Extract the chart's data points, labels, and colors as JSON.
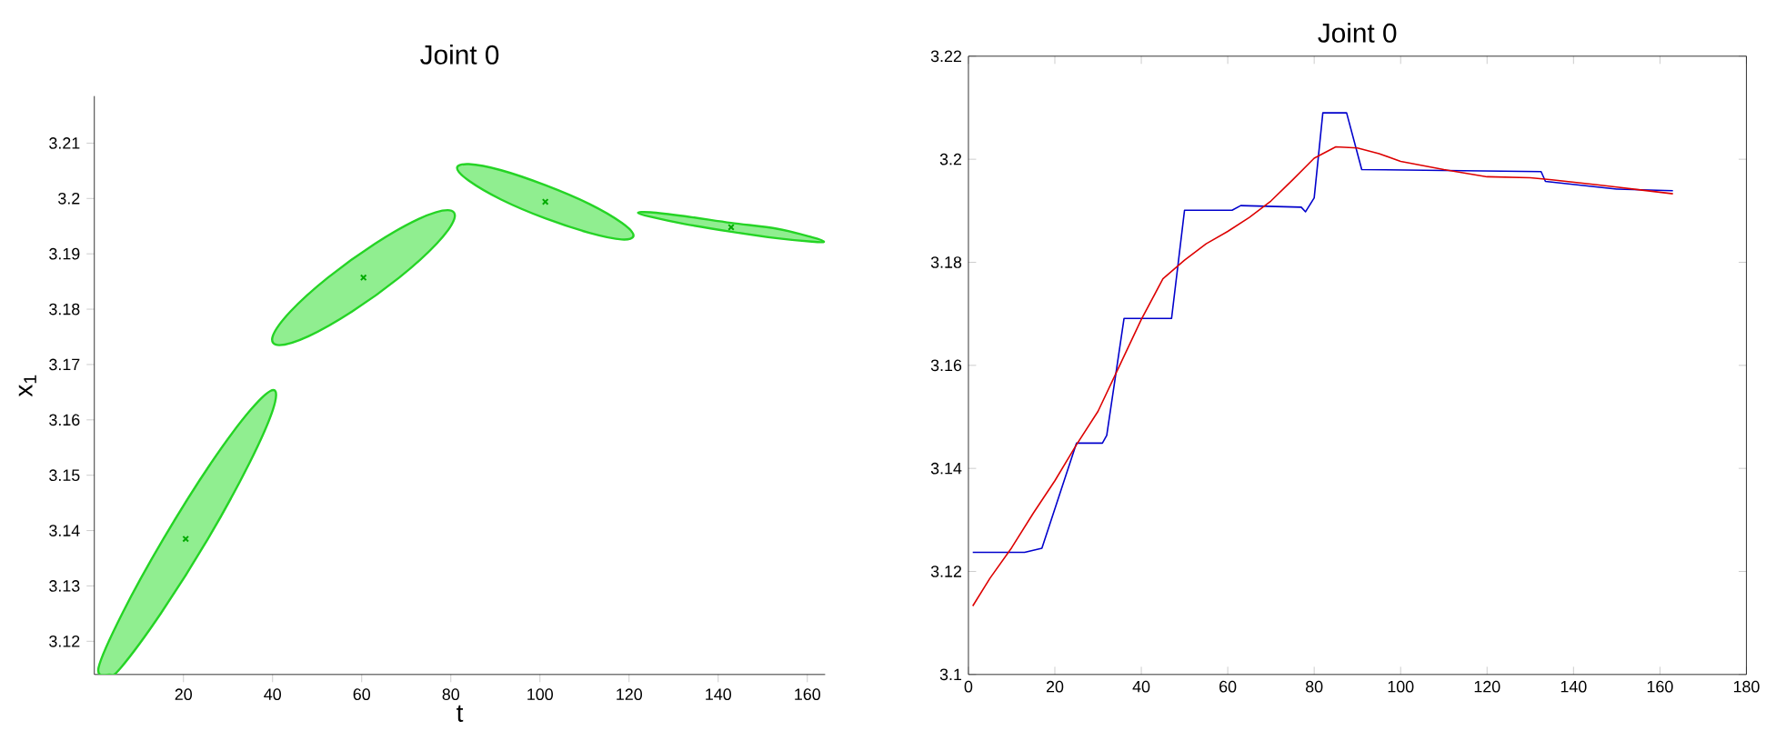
{
  "chart_data": [
    {
      "type": "scatter",
      "title": "Joint 0",
      "xlabel": "t",
      "ylabel": "x$_{1}$",
      "xlim": [
        0,
        164
      ],
      "ylim": [
        3.114,
        3.2185
      ],
      "xticks": [
        20,
        40,
        60,
        80,
        100,
        120,
        140,
        160
      ],
      "yticks": [
        3.12,
        3.13,
        3.14,
        3.15,
        3.16,
        3.17,
        3.18,
        3.19,
        3.2,
        3.21
      ],
      "grid": false,
      "legend": false,
      "series": [
        {
          "type": "area",
          "color": "#90ee90",
          "x": [
            40.2,
            40.06,
            34.68,
            25.5,
            14.98,
            5.94,
            3.4,
            0.94,
            6.32,
            15.5,
            26.02,
            35.06
          ],
          "values": [
            3.1654,
            3.1618,
            3.152,
            3.1385,
            3.1251,
            3.1152,
            3.114,
            3.1152,
            3.1251,
            3.1385,
            3.152,
            3.1618
          ]
        },
        {
          "type": "area",
          "color": "#90ee90",
          "x": [
            79.3,
            80.77,
            76.78,
            68.4,
            57.88,
            48.03,
            41.5,
            40.03,
            44.02,
            52.4,
            62.92,
            72.77
          ],
          "values": [
            3.1979,
            3.1963,
            3.1918,
            3.1857,
            3.1796,
            3.1751,
            3.1735,
            3.1751,
            3.1796,
            3.1857,
            3.1918,
            3.1963
          ]
        },
        {
          "type": "area",
          "color": "#90ee90",
          "x": [
            121.0,
            118.35,
            111.1,
            101.2,
            91.3,
            84.05,
            81.4,
            84.05,
            91.3,
            101.2,
            111.1,
            118.35
          ],
          "values": [
            3.1933,
            3.1956,
            3.199,
            3.2024,
            3.2051,
            3.2062,
            3.2055,
            3.2032,
            3.1998,
            3.1964,
            3.1938,
            3.1926
          ]
        },
        {
          "type": "area",
          "color": "#90ee90",
          "x": [
            122.0,
            124.8,
            132.45,
            142.9,
            153.35,
            161.0,
            163.8,
            161.0,
            153.35,
            142.9,
            132.45,
            124.8
          ],
          "values": [
            3.1974,
            3.1975,
            3.1968,
            3.1956,
            3.1945,
            3.193,
            3.1922,
            3.1922,
            3.1928,
            3.194,
            3.1954,
            3.1967
          ]
        },
        {
          "type": "scatter",
          "color": "#00aa00",
          "marker": "cross",
          "x": [
            20.5,
            60.4,
            101.2,
            142.9
          ],
          "values": [
            3.1385,
            3.1857,
            3.1994,
            3.1948
          ]
        }
      ]
    },
    {
      "type": "line",
      "title": "Joint 0",
      "xlim": [
        0,
        180
      ],
      "ylim": [
        3.1,
        3.22
      ],
      "xticks": [
        0,
        20,
        40,
        60,
        80,
        100,
        120,
        140,
        160,
        180
      ],
      "yticks": [
        3.1,
        3.12,
        3.14,
        3.16,
        3.18,
        3.2,
        3.22
      ],
      "grid": false,
      "legend": false,
      "series": [
        {
          "color": "#0000cc",
          "x": [
            1,
            13,
            17,
            25,
            31,
            32,
            36,
            47,
            50,
            61,
            63,
            77,
            78,
            80,
            82,
            87.5,
            91,
            132.5,
            133.5,
            150,
            163
          ],
          "values": [
            3.1237,
            3.1237,
            3.1245,
            3.1449,
            3.1449,
            3.1464,
            3.1691,
            3.1691,
            3.1901,
            3.1901,
            3.191,
            3.1907,
            3.1898,
            3.1925,
            3.209,
            3.209,
            3.198,
            3.1976,
            3.1957,
            3.1942,
            3.1939
          ]
        },
        {
          "color": "#dd0000",
          "x": [
            1,
            5,
            10,
            15,
            20,
            25,
            30,
            35,
            40,
            45,
            50,
            55,
            60,
            65,
            70,
            75,
            80,
            85,
            90,
            95,
            100,
            110,
            120,
            130,
            135,
            145,
            155,
            163
          ],
          "values": [
            3.1133,
            3.1187,
            3.1246,
            3.1313,
            3.1376,
            3.1446,
            3.1511,
            3.16,
            3.1689,
            3.1768,
            3.1804,
            3.1836,
            3.186,
            3.1887,
            3.1919,
            3.196,
            3.2002,
            3.2024,
            3.2022,
            3.2011,
            3.1996,
            3.198,
            3.1966,
            3.1964,
            3.196,
            3.1951,
            3.1941,
            3.1933
          ]
        }
      ]
    }
  ]
}
